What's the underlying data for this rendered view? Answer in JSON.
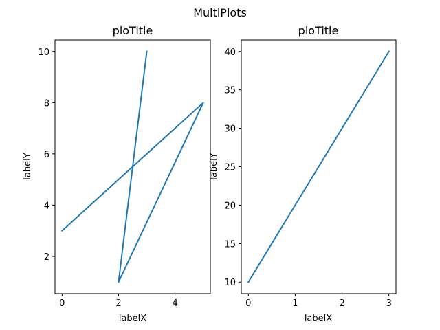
{
  "figure": {
    "suptitle": "MultiPlots"
  },
  "chart_data": [
    {
      "type": "line",
      "title": "ploTitle",
      "xlabel": "labelX",
      "ylabel": "labelY",
      "xlim": [
        -0.25,
        5.25
      ],
      "ylim": [
        0.55,
        10.45
      ],
      "xticks": [
        0,
        2,
        4
      ],
      "yticks": [
        2,
        4,
        6,
        8,
        10
      ],
      "grid": false,
      "color": "#1f77b4",
      "series": [
        {
          "x": [
            0,
            5,
            2,
            3
          ],
          "y": [
            3,
            8,
            1,
            10
          ]
        }
      ]
    },
    {
      "type": "line",
      "title": "ploTitle",
      "xlabel": "labelX",
      "ylabel": "labelY",
      "xlim": [
        -0.15,
        3.15
      ],
      "ylim": [
        8.5,
        41.5
      ],
      "xticks": [
        0,
        1,
        2,
        3
      ],
      "yticks": [
        10,
        15,
        20,
        25,
        30,
        35,
        40
      ],
      "grid": false,
      "color": "#1f77b4",
      "series": [
        {
          "x": [
            0,
            1,
            2,
            3
          ],
          "y": [
            10,
            20,
            30,
            40
          ]
        }
      ]
    }
  ]
}
